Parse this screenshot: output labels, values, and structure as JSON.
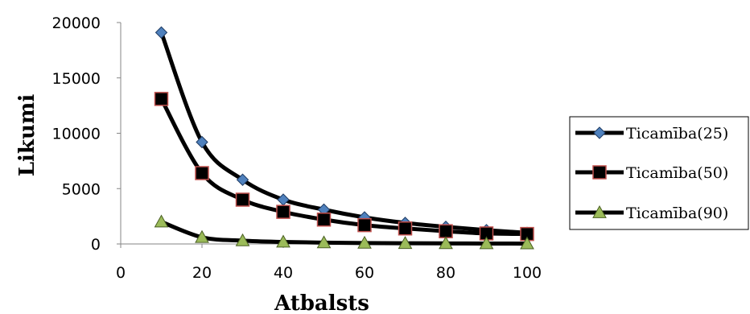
{
  "chart_data": {
    "type": "line",
    "xlabel": "Atbalsts",
    "ylabel": "Likumi",
    "xlim": [
      0,
      100
    ],
    "ylim": [
      0,
      20000
    ],
    "x_ticks": [
      "0",
      "20",
      "40",
      "60",
      "80",
      "100"
    ],
    "y_ticks": [
      "0",
      "5000",
      "10000",
      "15000",
      "20000"
    ],
    "x": [
      10,
      20,
      30,
      40,
      50,
      60,
      70,
      80,
      90,
      100
    ],
    "legend_position": "right",
    "grid": false,
    "series": [
      {
        "name": "Ticamība(25)",
        "marker": "diamond",
        "marker_fill": "#4f81bd",
        "line_color": "#000000",
        "values": [
          19100,
          9200,
          5800,
          4000,
          3100,
          2400,
          1900,
          1550,
          1250,
          1000
        ]
      },
      {
        "name": "Ticamība(50)",
        "marker": "square",
        "marker_fill": "#000000",
        "marker_stroke": "#c0504d",
        "line_color": "#000000",
        "values": [
          13100,
          6400,
          4000,
          2900,
          2200,
          1700,
          1400,
          1150,
          950,
          900
        ]
      },
      {
        "name": "Ticamība(90)",
        "marker": "triangle",
        "marker_fill": "#9bbb59",
        "line_color": "#000000",
        "values": [
          2000,
          600,
          300,
          180,
          120,
          80,
          60,
          50,
          40,
          30
        ]
      }
    ]
  }
}
